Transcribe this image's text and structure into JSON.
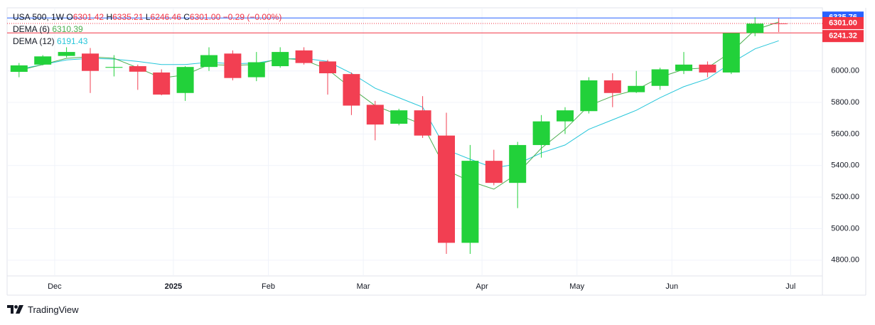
{
  "header": {
    "symbol": "USA 500, 1W",
    "open_label": "O",
    "open": "6301.42",
    "high_label": "H",
    "high": "6335.21",
    "low_label": "L",
    "low": "6246.46",
    "close_label": "C",
    "close": "6301.00",
    "change": "−0.29 (−0.00%)"
  },
  "legend": {
    "dema6_name": "DEMA (6)",
    "dema6_value": "6310.39",
    "dema12_name": "DEMA (12)",
    "dema12_value": "6191.43"
  },
  "price_tags": [
    {
      "label": "6335.76",
      "value": 6335.76,
      "bg": "#2962ff"
    },
    {
      "label": "6301.00",
      "value": 6301.0,
      "bg": "#f23645"
    },
    {
      "label": "6241.32",
      "value": 6241.32,
      "bg": "#f23645"
    }
  ],
  "colors": {
    "up": "#22d13a",
    "down": "#f23f52",
    "dema6": "#4caf50",
    "dema12": "#26c6da",
    "grid": "#f0f3fa",
    "axis_text": "#131722",
    "border": "#e0e3eb"
  },
  "branding": {
    "logo_icon": "tradingview-logo-icon",
    "name": "TradingView"
  },
  "chart_data": {
    "type": "candlestick",
    "interval": "1W",
    "ylim": [
      4700,
      6400
    ],
    "y_ticks": [
      4800,
      5000,
      5200,
      5400,
      5600,
      5800,
      6000
    ],
    "y_tick_labels": [
      "4800.00",
      "5000.00",
      "5200.00",
      "5400.00",
      "5600.00",
      "5800.00",
      "6000.00"
    ],
    "x_labels": [
      {
        "label": "Dec",
        "index": 1.5,
        "bold": false
      },
      {
        "label": "2025",
        "index": 6.5,
        "bold": true
      },
      {
        "label": "Feb",
        "index": 10.5,
        "bold": false
      },
      {
        "label": "Mar",
        "index": 14.5,
        "bold": false
      },
      {
        "label": "Apr",
        "index": 19.5,
        "bold": false
      },
      {
        "label": "May",
        "index": 23.5,
        "bold": false
      },
      {
        "label": "Jun",
        "index": 27.5,
        "bold": false
      },
      {
        "label": "Jul",
        "index": 32.5,
        "bold": false
      }
    ],
    "candles": [
      {
        "o": 5994,
        "h": 6050,
        "l": 5960,
        "c": 6035
      },
      {
        "o": 6040,
        "h": 6100,
        "l": 6035,
        "c": 6092
      },
      {
        "o": 6095,
        "h": 6150,
        "l": 6085,
        "c": 6120
      },
      {
        "o": 6110,
        "h": 6145,
        "l": 5860,
        "c": 6000
      },
      {
        "o": 6020,
        "h": 6100,
        "l": 5965,
        "c": 6025
      },
      {
        "o": 6030,
        "h": 6040,
        "l": 5880,
        "c": 5995
      },
      {
        "o": 5990,
        "h": 6010,
        "l": 5845,
        "c": 5850
      },
      {
        "o": 5860,
        "h": 6030,
        "l": 5810,
        "c": 6025
      },
      {
        "o": 6025,
        "h": 6150,
        "l": 6000,
        "c": 6100
      },
      {
        "o": 6110,
        "h": 6130,
        "l": 5940,
        "c": 5955
      },
      {
        "o": 5960,
        "h": 6120,
        "l": 5935,
        "c": 6055
      },
      {
        "o": 6030,
        "h": 6150,
        "l": 6020,
        "c": 6120
      },
      {
        "o": 6130,
        "h": 6150,
        "l": 6040,
        "c": 6050
      },
      {
        "o": 6060,
        "h": 6070,
        "l": 5850,
        "c": 5985
      },
      {
        "o": 5980,
        "h": 5990,
        "l": 5720,
        "c": 5780
      },
      {
        "o": 5785,
        "h": 5810,
        "l": 5560,
        "c": 5660
      },
      {
        "o": 5665,
        "h": 5760,
        "l": 5655,
        "c": 5750
      },
      {
        "o": 5750,
        "h": 5840,
        "l": 5575,
        "c": 5590
      },
      {
        "o": 5590,
        "h": 5735,
        "l": 4840,
        "c": 4910
      },
      {
        "o": 4910,
        "h": 5530,
        "l": 4840,
        "c": 5430
      },
      {
        "o": 5430,
        "h": 5500,
        "l": 5275,
        "c": 5290
      },
      {
        "o": 5290,
        "h": 5550,
        "l": 5130,
        "c": 5530
      },
      {
        "o": 5530,
        "h": 5720,
        "l": 5450,
        "c": 5680
      },
      {
        "o": 5680,
        "h": 5770,
        "l": 5600,
        "c": 5750
      },
      {
        "o": 5745,
        "h": 5960,
        "l": 5730,
        "c": 5940
      },
      {
        "o": 5940,
        "h": 5985,
        "l": 5770,
        "c": 5860
      },
      {
        "o": 5865,
        "h": 6000,
        "l": 5860,
        "c": 5905
      },
      {
        "o": 5905,
        "h": 6020,
        "l": 5880,
        "c": 6010
      },
      {
        "o": 6000,
        "h": 6120,
        "l": 5980,
        "c": 6040
      },
      {
        "o": 6040,
        "h": 6060,
        "l": 5960,
        "c": 5990
      },
      {
        "o": 5990,
        "h": 6240,
        "l": 5980,
        "c": 6240
      },
      {
        "o": 6240,
        "h": 6340,
        "l": 6220,
        "c": 6300
      },
      {
        "o": 6301.42,
        "h": 6335.21,
        "l": 6246.46,
        "c": 6301.0
      }
    ],
    "dema6": [
      6003,
      6040,
      6080,
      6090,
      6080,
      6020,
      5955,
      5975,
      6040,
      6035,
      6040,
      6080,
      6070,
      6010,
      5890,
      5780,
      5720,
      5660,
      5370,
      5300,
      5250,
      5350,
      5510,
      5630,
      5780,
      5840,
      5880,
      5960,
      6010,
      6020,
      6120,
      6260,
      6310.39
    ],
    "dema12": [
      6010,
      6040,
      6070,
      6080,
      6075,
      6060,
      6040,
      6040,
      6055,
      6045,
      6050,
      6075,
      6080,
      6060,
      5985,
      5890,
      5830,
      5770,
      5500,
      5440,
      5385,
      5410,
      5480,
      5530,
      5630,
      5690,
      5750,
      5830,
      5900,
      5950,
      6050,
      6140,
      6191.43
    ]
  }
}
